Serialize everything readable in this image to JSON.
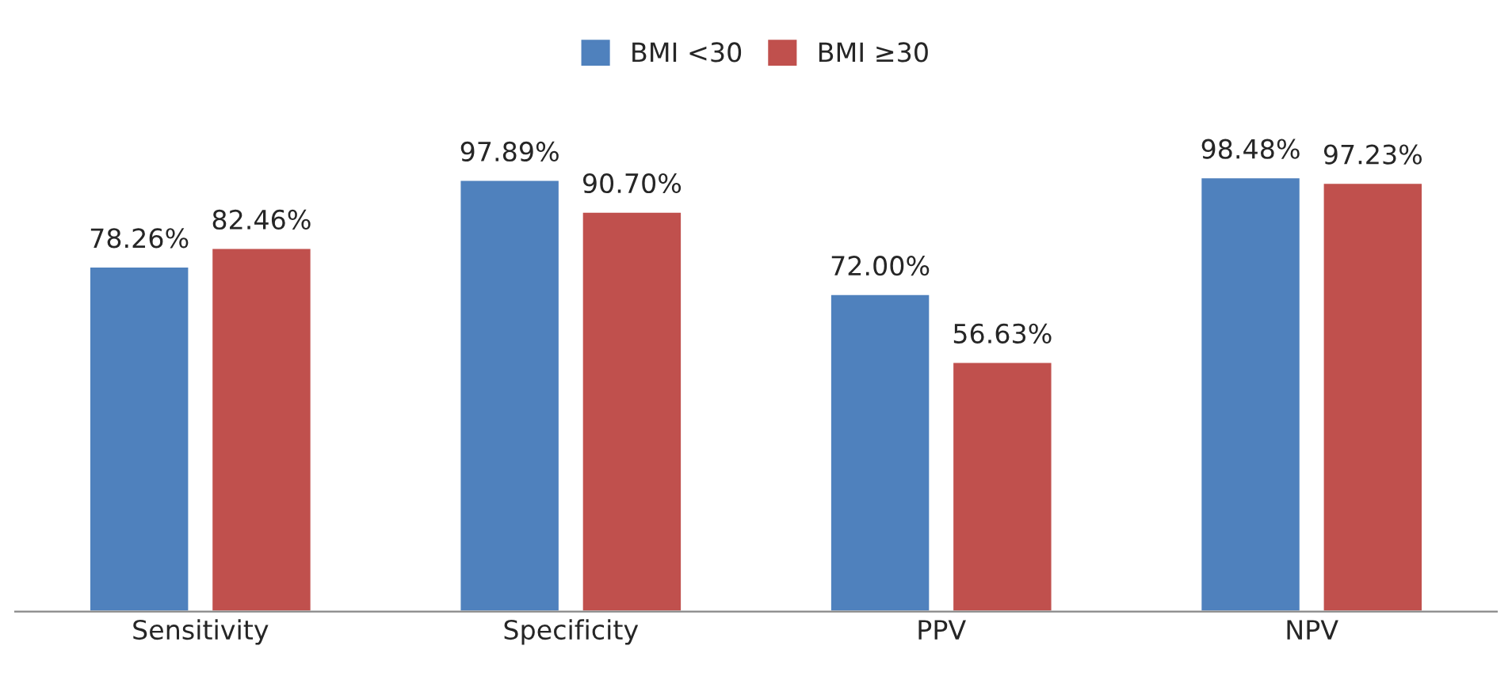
{
  "chart_data": {
    "type": "bar",
    "categories": [
      "Sensitivity",
      "Specificity",
      "PPV",
      "NPV"
    ],
    "series": [
      {
        "name": "BMI <30",
        "color": "#4f81bd",
        "values": [
          78.26,
          97.89,
          72.0,
          98.48
        ],
        "value_labels": [
          "78.26%",
          "97.89%",
          "72.00%",
          "98.48%"
        ]
      },
      {
        "name": "BMI ≥30",
        "color": "#c0504d",
        "values": [
          82.46,
          90.7,
          56.63,
          97.23
        ],
        "value_labels": [
          "82.46%",
          "90.70%",
          "56.63%",
          "97.23%"
        ]
      }
    ],
    "legend": "top",
    "grid": false,
    "tick_labels": "x"
  }
}
